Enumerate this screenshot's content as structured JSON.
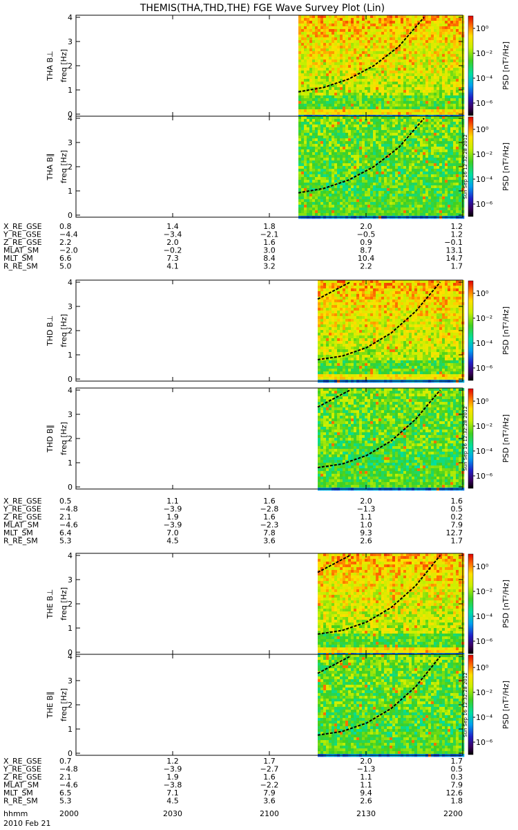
{
  "title": "THEMIS(THA,THD,THE) FGE Wave Survey Plot (Lin)",
  "time_axis": {
    "label": "hhmm",
    "ticks": [
      "2000",
      "2030",
      "2100",
      "2130",
      "2200"
    ],
    "date": "2010 Feb 21"
  },
  "colorbar": {
    "label": "PSD [nT²/Hz]",
    "tick_labels": [
      "10⁰",
      "10⁻²",
      "10⁻⁴",
      "10⁻⁶"
    ],
    "log_min": -7,
    "log_max": 1
  },
  "timestamp_label": "Sun Sep 16 12:32:28 2012",
  "colors": {
    "background": "#ffffff",
    "axis": "#000000",
    "dashed_line": "#000000"
  },
  "chart_data": [
    {
      "type": "heatmap",
      "probe": "THA",
      "panel_label": "THA B⊥",
      "ylabel": "freq [Hz]",
      "yticks": [
        "0",
        "1",
        "2",
        "3",
        "4"
      ],
      "ylim": [
        0,
        4
      ],
      "xlim": [
        "2000",
        "2200"
      ],
      "data_start_hhmm": "2109",
      "curve_hz": [
        0.92,
        1.1,
        1.45,
        2.0,
        2.8,
        4.0
      ],
      "upper_curve": false
    },
    {
      "type": "heatmap",
      "probe": "THA",
      "panel_label": "THA B∥",
      "ylabel": "freq [Hz]",
      "yticks": [
        "0",
        "1",
        "2",
        "3",
        "4"
      ],
      "ylim": [
        0,
        4
      ],
      "xlim": [
        "2000",
        "2200"
      ],
      "data_start_hhmm": "2109",
      "curve_hz": [
        0.92,
        1.1,
        1.45,
        2.0,
        2.8,
        4.0
      ],
      "upper_curve": false
    },
    {
      "type": "heatmap",
      "probe": "THD",
      "panel_label": "THD B⊥",
      "ylabel": "freq [Hz]",
      "yticks": [
        "0",
        "1",
        "2",
        "3",
        "4"
      ],
      "ylim": [
        0,
        4
      ],
      "xlim": [
        "2000",
        "2200"
      ],
      "data_start_hhmm": "2115",
      "curve_hz": [
        0.8,
        0.95,
        1.3,
        1.9,
        2.8,
        4.0
      ],
      "upper_curve": true
    },
    {
      "type": "heatmap",
      "probe": "THD",
      "panel_label": "THD B∥",
      "ylabel": "freq [Hz]",
      "yticks": [
        "0",
        "1",
        "2",
        "3",
        "4"
      ],
      "ylim": [
        0,
        4
      ],
      "xlim": [
        "2000",
        "2200"
      ],
      "data_start_hhmm": "2115",
      "curve_hz": [
        0.8,
        0.95,
        1.3,
        1.9,
        2.8,
        4.0
      ],
      "upper_curve": true
    },
    {
      "type": "heatmap",
      "probe": "THE",
      "panel_label": "THE B⊥",
      "ylabel": "freq [Hz]",
      "yticks": [
        "0",
        "1",
        "2",
        "3",
        "4"
      ],
      "ylim": [
        0,
        4
      ],
      "xlim": [
        "2000",
        "2200"
      ],
      "data_start_hhmm": "2115",
      "curve_hz": [
        0.75,
        0.9,
        1.25,
        1.85,
        2.75,
        4.0
      ],
      "upper_curve": true
    },
    {
      "type": "heatmap",
      "probe": "THE",
      "panel_label": "THE B∥",
      "ylabel": "freq [Hz]",
      "yticks": [
        "0",
        "1",
        "2",
        "3",
        "4"
      ],
      "ylim": [
        0,
        4
      ],
      "xlim": [
        "2000",
        "2200"
      ],
      "data_start_hhmm": "2115",
      "curve_hz": [
        0.75,
        0.9,
        1.25,
        1.85,
        2.75,
        4.0
      ],
      "upper_curve": true
    }
  ],
  "ephemeris": [
    {
      "probe": "THA",
      "rows": [
        {
          "name": "X_RE_GSE",
          "values": [
            "0.8",
            "1.4",
            "1.8",
            "2.0",
            "1.2"
          ]
        },
        {
          "name": "Y_RE_GSE",
          "values": [
            "−4.4",
            "−3.4",
            "−2.1",
            "−0.5",
            "1.2"
          ]
        },
        {
          "name": "Z_RE_GSE",
          "values": [
            "2.2",
            "2.0",
            "1.6",
            "0.9",
            "−0.1"
          ]
        },
        {
          "name": "MLAT_SM",
          "values": [
            "−2.0",
            "−0.2",
            "3.0",
            "8.7",
            "13.1"
          ]
        },
        {
          "name": "MLT_SM",
          "values": [
            "6.6",
            "7.3",
            "8.4",
            "10.4",
            "14.7"
          ]
        },
        {
          "name": "R_RE_SM",
          "values": [
            "5.0",
            "4.1",
            "3.2",
            "2.2",
            "1.7"
          ]
        }
      ]
    },
    {
      "probe": "THD",
      "rows": [
        {
          "name": "X_RE_GSE",
          "values": [
            "0.5",
            "1.1",
            "1.6",
            "2.0",
            "1.6"
          ]
        },
        {
          "name": "Y_RE_GSE",
          "values": [
            "−4.8",
            "−3.9",
            "−2.8",
            "−1.3",
            "0.5"
          ]
        },
        {
          "name": "Z_RE_GSE",
          "values": [
            "2.1",
            "1.9",
            "1.6",
            "1.1",
            "0.2"
          ]
        },
        {
          "name": "MLAT_SM",
          "values": [
            "−4.6",
            "−3.9",
            "−2.3",
            "1.0",
            "7.9"
          ]
        },
        {
          "name": "MLT_SM",
          "values": [
            "6.4",
            "7.0",
            "7.8",
            "9.3",
            "12.7"
          ]
        },
        {
          "name": "R_RE_SM",
          "values": [
            "5.3",
            "4.5",
            "3.6",
            "2.6",
            "1.7"
          ]
        }
      ]
    },
    {
      "probe": "THE",
      "rows": [
        {
          "name": "X_RE_GSE",
          "values": [
            "0.7",
            "1.2",
            "1.7",
            "2.0",
            "1.7"
          ]
        },
        {
          "name": "Y_RE_GSE",
          "values": [
            "−4.8",
            "−3.9",
            "−2.7",
            "−1.3",
            "0.5"
          ]
        },
        {
          "name": "Z_RE_GSE",
          "values": [
            "2.1",
            "1.9",
            "1.6",
            "1.1",
            "0.3"
          ]
        },
        {
          "name": "MLAT_SM",
          "values": [
            "−4.6",
            "−3.8",
            "−2.2",
            "1.1",
            "7.9"
          ]
        },
        {
          "name": "MLT_SM",
          "values": [
            "6.5",
            "7.1",
            "7.9",
            "9.4",
            "12.6"
          ]
        },
        {
          "name": "R_RE_SM",
          "values": [
            "5.3",
            "4.5",
            "3.6",
            "2.6",
            "1.8"
          ]
        }
      ]
    }
  ]
}
